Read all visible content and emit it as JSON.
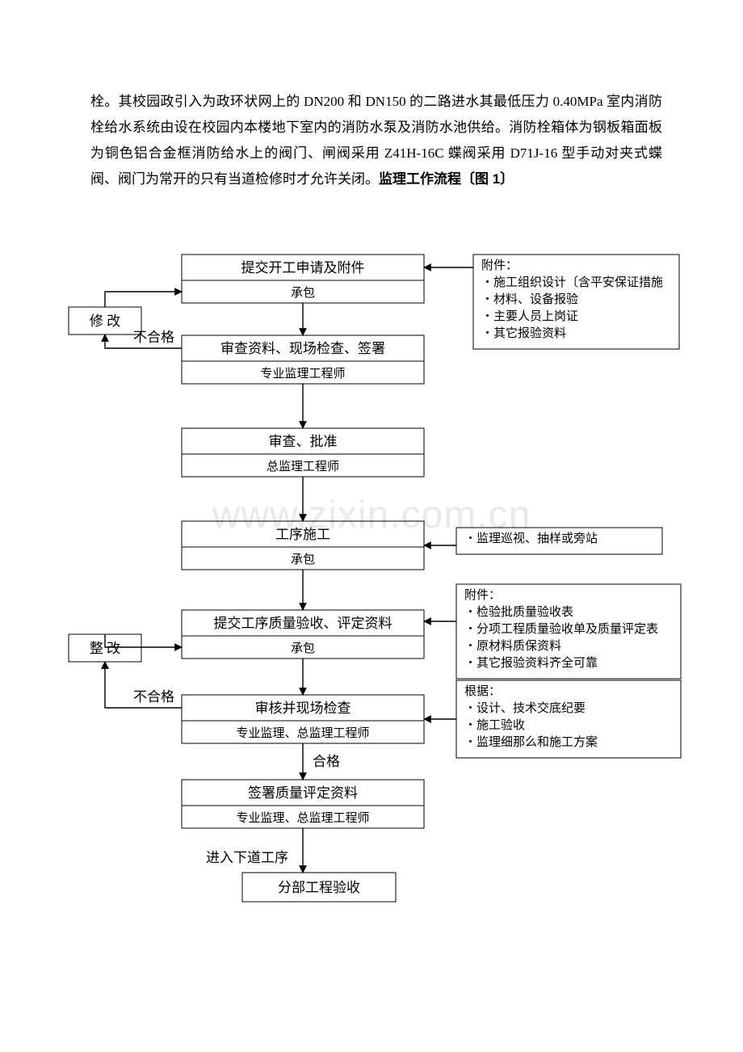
{
  "text": {
    "intro_p1": "栓。其校园政引入为政环状网上的 DN200 和 DN150 的二路进水其最低压力 0.40MPa 室内消防栓给水系统由设在校园内本楼地下室内的消防水泵及消防水池供给。消防栓箱体为钢板箱面板为铜色铝合金框消防给水上的阀门、闸阀采用 Z41H-16C 蝶阀采用 D71J-16 型手动对夹式蝶阀、阀门为常开的只有当道检修时才允许关闭。",
    "intro_bold": "监理工作流程〔图 1〕"
  },
  "watermark": "www.zixin.com.cn",
  "flowchart": {
    "stroke": "#000000",
    "fill": "#ffffff",
    "font_main": 17,
    "font_sub": 15,
    "nodes": {
      "n1": {
        "title": "提交开工申请及附件",
        "sub": "承包"
      },
      "n_modify": {
        "title": "修 改"
      },
      "n2": {
        "title": "审查资料、现场检查、签署",
        "sub": "专业监理工程师"
      },
      "n3": {
        "title": "审查、批准",
        "sub": "总监理工程师"
      },
      "n4": {
        "title": "工序施工",
        "sub": "承包"
      },
      "n5": {
        "title": "提交工序质量验收、评定资料",
        "sub": "承包"
      },
      "n_rect": {
        "title": "整 改"
      },
      "n6": {
        "title": "审核并现场检查",
        "sub": "专业监理、总监理工程师"
      },
      "n7": {
        "title": "签署质量评定资料",
        "sub": "专业监理、总监理工程师"
      },
      "n8": {
        "title": "分部工程验收"
      }
    },
    "edge_labels": {
      "fail1": "不合格",
      "fail2": "不合格",
      "pass": "合格",
      "next": "进入下道工序"
    },
    "sideboxes": {
      "s1": {
        "title": "附件：",
        "items": [
          "施工组织设计〔含平安保证措施",
          "材料、设备报验",
          "主要人员上岗证",
          "其它报验资料"
        ]
      },
      "s2": {
        "items": [
          "监理巡视、抽样或旁站"
        ]
      },
      "s3": {
        "title": "附件：",
        "items": [
          "检验批质量验收表",
          "分项工程质量验收单及质量评定表",
          "原材料质保资料",
          "其它报验资料齐全可靠"
        ]
      },
      "s4": {
        "title": "根据：",
        "items": [
          "设计、技术交底纪要",
          "施工验收",
          "监理细那么和施工方案"
        ]
      }
    }
  }
}
